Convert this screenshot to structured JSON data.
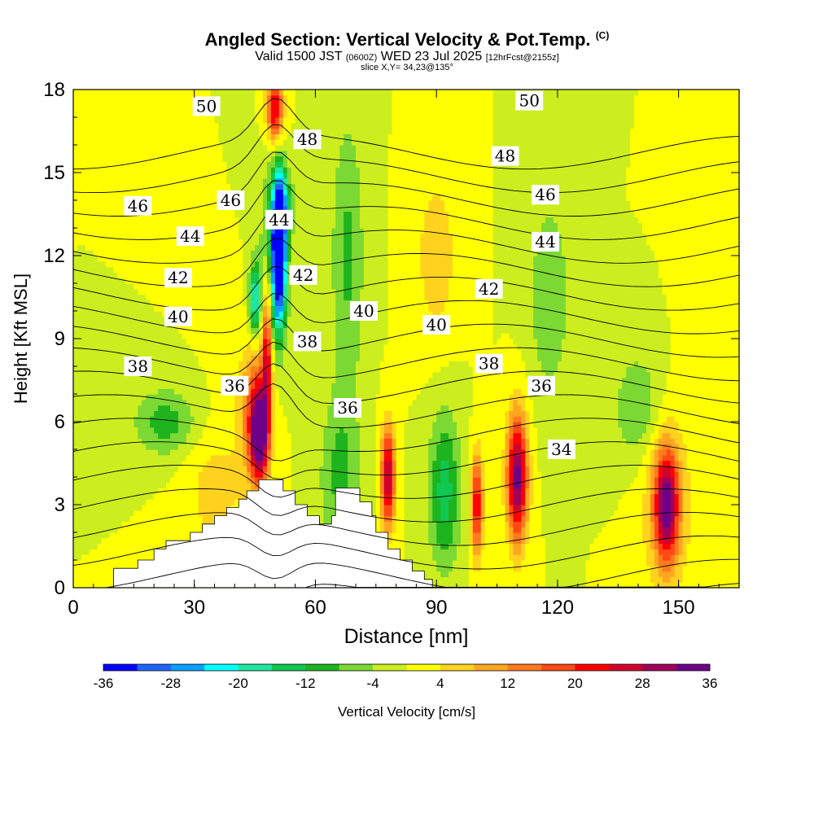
{
  "header": {
    "title_main": "Angled Section: Vertical Velocity & Pot.Temp.",
    "title_mark": "(C)",
    "valid_prefix": "Valid 1500 JST",
    "valid_utc": "(0600Z)",
    "valid_date": "WED 23 Jul 2025",
    "forecast": "[12hrFcst@2155z]",
    "slice": "slice X,Y= 34,23@135°"
  },
  "chart_data": {
    "type": "heatmap",
    "xlabel": "Distance [nm]",
    "ylabel": "Height [Kft MSL]",
    "xlim": [
      0,
      165
    ],
    "ylim": [
      0,
      18
    ],
    "x_ticks": [
      0,
      30,
      60,
      90,
      120,
      150
    ],
    "y_ticks": [
      0,
      3,
      6,
      9,
      12,
      15,
      18
    ],
    "colorbar": {
      "label": "Vertical Velocity [cm/s]",
      "range": [
        -36,
        36
      ],
      "step": 4,
      "tick_labels": [
        "-36",
        "-28",
        "-20",
        "-12",
        "-4",
        "4",
        "12",
        "20",
        "28",
        "36"
      ],
      "colors": [
        "#0000ff",
        "#1e64ff",
        "#0aa0ff",
        "#00ffff",
        "#1ee6a0",
        "#10c850",
        "#1eb41e",
        "#7cd832",
        "#ccee1e",
        "#ffff00",
        "#ffd21e",
        "#ffa620",
        "#ff7a1e",
        "#ff4a14",
        "#ff0000",
        "#d2002d",
        "#a0005a",
        "#6e0087"
      ]
    },
    "theta_contour_labels": [
      {
        "value": "34",
        "x": 121,
        "y": 5.0
      },
      {
        "value": "36",
        "x": 40,
        "y": 7.3
      },
      {
        "value": "36",
        "x": 68,
        "y": 6.5
      },
      {
        "value": "36",
        "x": 116,
        "y": 7.3
      },
      {
        "value": "38",
        "x": 16,
        "y": 8.0
      },
      {
        "value": "38",
        "x": 58,
        "y": 8.9
      },
      {
        "value": "38",
        "x": 103,
        "y": 8.1
      },
      {
        "value": "40",
        "x": 26,
        "y": 9.8
      },
      {
        "value": "40",
        "x": 72,
        "y": 10.0
      },
      {
        "value": "40",
        "x": 90,
        "y": 9.5
      },
      {
        "value": "42",
        "x": 26,
        "y": 11.2
      },
      {
        "value": "42",
        "x": 57,
        "y": 11.3
      },
      {
        "value": "42",
        "x": 103,
        "y": 10.8
      },
      {
        "value": "44",
        "x": 29,
        "y": 12.7
      },
      {
        "value": "44",
        "x": 51,
        "y": 13.3
      },
      {
        "value": "44",
        "x": 117,
        "y": 12.5
      },
      {
        "value": "46",
        "x": 16,
        "y": 13.8
      },
      {
        "value": "46",
        "x": 39,
        "y": 14.0
      },
      {
        "value": "46",
        "x": 117,
        "y": 14.2
      },
      {
        "value": "48",
        "x": 58,
        "y": 16.2
      },
      {
        "value": "48",
        "x": 107,
        "y": 15.6
      },
      {
        "value": "50",
        "x": 33,
        "y": 17.4
      },
      {
        "value": "50",
        "x": 113,
        "y": 17.6
      }
    ],
    "terrain_kft": [
      [
        0,
        0
      ],
      [
        10,
        0
      ],
      [
        10,
        0.7
      ],
      [
        16,
        0.7
      ],
      [
        16,
        1.0
      ],
      [
        20,
        1.0
      ],
      [
        20,
        1.4
      ],
      [
        23,
        1.4
      ],
      [
        23,
        1.7
      ],
      [
        29,
        1.7
      ],
      [
        29,
        2.0
      ],
      [
        32,
        2.0
      ],
      [
        32,
        2.3
      ],
      [
        35,
        2.3
      ],
      [
        35,
        2.6
      ],
      [
        38,
        2.6
      ],
      [
        38,
        2.9
      ],
      [
        41,
        2.9
      ],
      [
        41,
        3.2
      ],
      [
        43,
        3.2
      ],
      [
        43,
        3.5
      ],
      [
        46,
        3.5
      ],
      [
        46,
        3.9
      ],
      [
        52,
        3.9
      ],
      [
        52,
        3.5
      ],
      [
        55,
        3.5
      ],
      [
        55,
        3.0
      ],
      [
        58,
        3.0
      ],
      [
        58,
        2.6
      ],
      [
        61,
        2.6
      ],
      [
        61,
        2.3
      ],
      [
        64,
        2.3
      ],
      [
        64,
        2.6
      ],
      [
        65,
        2.6
      ],
      [
        65,
        3.6
      ],
      [
        71,
        3.6
      ],
      [
        71,
        3.1
      ],
      [
        74,
        3.1
      ],
      [
        74,
        2.6
      ],
      [
        75,
        2.6
      ],
      [
        75,
        2.0
      ],
      [
        78,
        2.0
      ],
      [
        78,
        1.4
      ],
      [
        81,
        1.4
      ],
      [
        81,
        1.0
      ],
      [
        84,
        1.0
      ],
      [
        84,
        0.6
      ],
      [
        87,
        0.6
      ],
      [
        87,
        0.3
      ],
      [
        89,
        0.3
      ],
      [
        89,
        0
      ],
      [
        165,
        0
      ]
    ],
    "velocity_features_cm_s": [
      {
        "x": 46,
        "y": 5.5,
        "w": 1.9,
        "h": 1.6,
        "v": 32
      },
      {
        "x": 45,
        "y": 6.3,
        "w": 3.6,
        "h": 2.4,
        "v": 18
      },
      {
        "x": 48,
        "y": 8.5,
        "w": 1.2,
        "h": 3.0,
        "v": 24
      },
      {
        "x": 50,
        "y": 17.3,
        "w": 2.0,
        "h": 1.2,
        "v": 26
      },
      {
        "x": 51,
        "y": 12.2,
        "w": 1.6,
        "h": 2.5,
        "v": -36
      },
      {
        "x": 50,
        "y": 12.0,
        "w": 3.0,
        "h": 3.0,
        "v": -18
      },
      {
        "x": 45,
        "y": 10.4,
        "w": 1.4,
        "h": 1.3,
        "v": -22
      },
      {
        "x": 52,
        "y": 13.8,
        "w": 2.5,
        "h": 1.2,
        "v": -12
      },
      {
        "x": 78,
        "y": 4.0,
        "w": 1.7,
        "h": 1.8,
        "v": 30
      },
      {
        "x": 100,
        "y": 3.0,
        "w": 1.5,
        "h": 1.8,
        "v": 24
      },
      {
        "x": 110,
        "y": 4.0,
        "w": 2.5,
        "h": 2.3,
        "v": 34
      },
      {
        "x": 147,
        "y": 3.0,
        "w": 2.8,
        "h": 1.9,
        "v": 28
      },
      {
        "x": 147,
        "y": 3.0,
        "w": 6.0,
        "h": 3.2,
        "v": 10
      },
      {
        "x": 92,
        "y": 3.5,
        "w": 4.0,
        "h": 2.8,
        "v": -14
      },
      {
        "x": 66,
        "y": 4.0,
        "w": 5.0,
        "h": 3.0,
        "v": -9
      },
      {
        "x": 68,
        "y": 12.0,
        "w": 4.0,
        "h": 5.0,
        "v": -9
      },
      {
        "x": 23,
        "y": 6.0,
        "w": 8.0,
        "h": 1.2,
        "v": -10
      },
      {
        "x": 118,
        "y": 10.5,
        "w": 5.0,
        "h": 3.5,
        "v": -8
      },
      {
        "x": 140,
        "y": 6.5,
        "w": 6.0,
        "h": 2.0,
        "v": -8
      },
      {
        "x": 90,
        "y": 12.0,
        "w": 5.0,
        "h": 3.0,
        "v": 7
      },
      {
        "x": 35,
        "y": 3.5,
        "w": 7.0,
        "h": 2.5,
        "v": 6
      }
    ]
  }
}
